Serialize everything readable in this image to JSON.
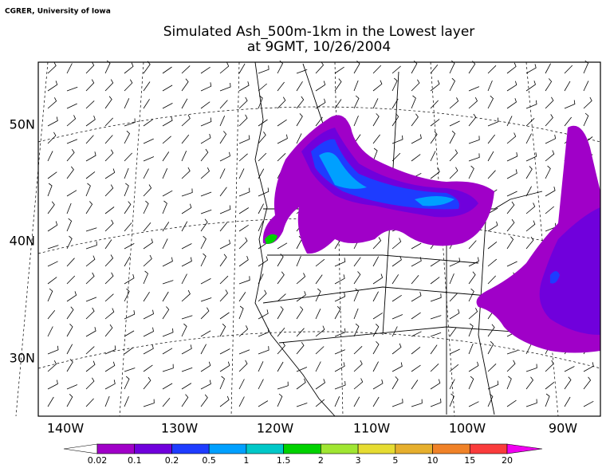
{
  "header": {
    "credit": "CGRER, University of Iowa",
    "title": "Simulated Ash_500m-1km in the Lowest layer",
    "subtitle": "at 9GMT, 10/26/2004"
  },
  "map": {
    "lat_labels": [
      "50N",
      "40N",
      "30N"
    ],
    "lon_labels": [
      "140W",
      "130W",
      "120W",
      "110W",
      "100W",
      "90W"
    ]
  },
  "legend": {
    "labels": [
      "0.02",
      "0.1",
      "0.2",
      "0.5",
      "1",
      "1.5",
      "2",
      "3",
      "5",
      "10",
      "15",
      "20"
    ],
    "colors": [
      "#ffffff",
      "#a000c8",
      "#7000dc",
      "#1e3cff",
      "#00a0ff",
      "#00c8c8",
      "#00d200",
      "#a0e632",
      "#e6dc32",
      "#e6af2d",
      "#f08228",
      "#fa3c3c",
      "#f000f0"
    ]
  }
}
